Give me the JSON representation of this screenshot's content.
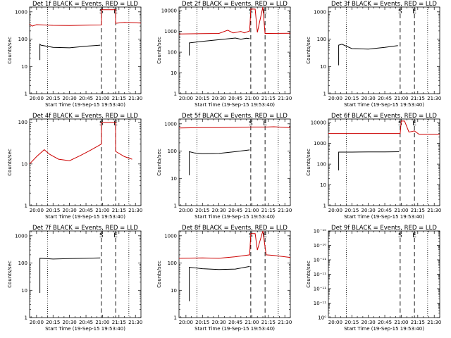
{
  "chart_data": [
    {
      "type": "line",
      "title": "Det 1f BLACK = Events, RED = LLD",
      "xlabel": "Start Time (19-Sep-15 19:53:40)",
      "ylabel": "Counts/sec",
      "x_unit": "time of day",
      "xticks": [
        "20:00",
        "20:15",
        "20:30",
        "20:45",
        "21:00",
        "21:15",
        "21:30"
      ],
      "xlim": [
        "19:53:40",
        "21:35"
      ],
      "yscale": "log",
      "yticks": [
        "1",
        "10",
        "100",
        "1000"
      ],
      "ylim": [
        1,
        1500
      ],
      "dotted_lines": [
        "20:10",
        "21:24"
      ],
      "dashed_lines": [
        {
          "time": "20:59",
          "label": "S"
        },
        {
          "time": "21:12",
          "label": "E"
        }
      ],
      "series": [
        {
          "color": "#cc0000",
          "points": [
            [
              "19:53:40",
              360
            ],
            [
              "19:56",
              300
            ],
            [
              "20:00",
              340
            ],
            [
              "20:15",
              320
            ],
            [
              "20:30",
              315
            ],
            [
              "20:45",
              325
            ],
            [
              "20:59",
              330
            ],
            [
              "20:59",
              1200
            ],
            [
              "21:12",
              1200
            ],
            [
              "21:12",
              380
            ],
            [
              "21:20",
              410
            ],
            [
              "21:35",
              390
            ]
          ]
        },
        {
          "color": "#000000",
          "points": [
            [
              "20:03",
              17
            ],
            [
              "20:03",
              65
            ],
            [
              "20:04",
              60
            ],
            [
              "20:15",
              50
            ],
            [
              "20:30",
              48
            ],
            [
              "20:45",
              55
            ],
            [
              "20:58",
              60
            ]
          ]
        }
      ]
    },
    {
      "type": "line",
      "title": "Det 2f BLACK = Events, RED = LLD",
      "xlabel": "Start Time (19-Sep-15 19:53:40)",
      "ylabel": "Counts/sec",
      "x_unit": "time of day",
      "xticks": [
        "20:00",
        "20:15",
        "20:30",
        "20:45",
        "21:00",
        "21:15",
        "21:30"
      ],
      "xlim": [
        "19:53:40",
        "21:35"
      ],
      "yscale": "log",
      "yticks": [
        "1",
        "10",
        "100",
        "1000",
        "10000"
      ],
      "ylim": [
        1,
        15000
      ],
      "dotted_lines": [
        "20:10",
        "21:24"
      ],
      "dashed_lines": [
        {
          "time": "20:59",
          "label": "S"
        },
        {
          "time": "21:12",
          "label": "E"
        }
      ],
      "series": [
        {
          "color": "#cc0000",
          "points": [
            [
              "19:53:40",
              750
            ],
            [
              "20:15",
              780
            ],
            [
              "20:30",
              800
            ],
            [
              "20:38",
              1150
            ],
            [
              "20:43",
              850
            ],
            [
              "20:50",
              1000
            ],
            [
              "20:53",
              850
            ],
            [
              "20:58",
              1050
            ],
            [
              "20:59",
              12000
            ],
            [
              "21:03",
              12000
            ],
            [
              "21:05",
              900
            ],
            [
              "21:10",
              20000
            ],
            [
              "21:12",
              800
            ],
            [
              "21:35",
              820
            ]
          ]
        },
        {
          "color": "#000000",
          "points": [
            [
              "20:03",
              70
            ],
            [
              "20:03",
              280
            ],
            [
              "20:15",
              330
            ],
            [
              "20:30",
              400
            ],
            [
              "20:45",
              480
            ],
            [
              "20:50",
              420
            ],
            [
              "20:55",
              470
            ],
            [
              "20:58",
              450
            ]
          ]
        }
      ]
    },
    {
      "type": "line",
      "title": "Det 3f BLACK = Events, RED = LLD",
      "xlabel": "Start Time (19-Sep-15 19:53:40)",
      "ylabel": "Counts/sec",
      "x_unit": "time of day",
      "xticks": [
        "20:00",
        "20:15",
        "20:30",
        "20:45",
        "21:00",
        "21:15",
        "21:30"
      ],
      "xlim": [
        "19:53:40",
        "21:35"
      ],
      "yscale": "log",
      "yticks": [
        "1",
        "10",
        "100",
        "1000"
      ],
      "ylim": [
        1,
        1500
      ],
      "dotted_lines": [
        "20:10",
        "21:24"
      ],
      "dashed_lines": [
        {
          "time": "20:59",
          "label": "S"
        },
        {
          "time": "21:12",
          "label": "E"
        }
      ],
      "series": [
        {
          "color": "#000000",
          "points": [
            [
              "20:03",
              11
            ],
            [
              "20:03",
              60
            ],
            [
              "20:06",
              65
            ],
            [
              "20:15",
              45
            ],
            [
              "20:30",
              43
            ],
            [
              "20:45",
              50
            ],
            [
              "20:57",
              58
            ]
          ]
        }
      ]
    },
    {
      "type": "line",
      "title": "Det 4f BLACK = Events, RED = LLD",
      "xlabel": "Start Time (19-Sep-15 19:53:40)",
      "ylabel": "Counts/sec",
      "x_unit": "time of day",
      "xticks": [
        "20:00",
        "20:15",
        "20:30",
        "20:45",
        "21:00",
        "21:15",
        "21:30"
      ],
      "xlim": [
        "19:53:40",
        "21:35"
      ],
      "yscale": "log",
      "yticks": [
        "1",
        "10",
        "100"
      ],
      "ylim": [
        1,
        120
      ],
      "dotted_lines": [
        "20:10",
        "21:24"
      ],
      "dashed_lines": [
        {
          "time": "20:59",
          "label": "S"
        },
        {
          "time": "21:12",
          "label": "E"
        }
      ],
      "series": [
        {
          "color": "#cc0000",
          "points": [
            [
              "19:53:40",
              10
            ],
            [
              "20:00",
              15
            ],
            [
              "20:07",
              22
            ],
            [
              "20:12",
              17
            ],
            [
              "20:20",
              13
            ],
            [
              "20:30",
              12
            ],
            [
              "20:40",
              16
            ],
            [
              "20:50",
              22
            ],
            [
              "20:59",
              30
            ],
            [
              "20:59",
              100
            ],
            [
              "21:12",
              100
            ],
            [
              "21:12",
              20
            ],
            [
              "21:20",
              15
            ],
            [
              "21:27",
              13
            ]
          ]
        }
      ]
    },
    {
      "type": "line",
      "title": "Det 5f BLACK = Events, RED = LLD",
      "xlabel": "Start Time (19-Sep-15 19:53:40)",
      "ylabel": "Counts/sec",
      "x_unit": "time of day",
      "xticks": [
        "20:00",
        "20:15",
        "20:30",
        "20:45",
        "21:00",
        "21:15",
        "21:30"
      ],
      "xlim": [
        "19:53:40",
        "21:35"
      ],
      "yscale": "log",
      "yticks": [
        "1",
        "10",
        "100",
        "1000"
      ],
      "ylim": [
        1,
        1500
      ],
      "dotted_lines": [
        "20:10",
        "21:24"
      ],
      "dashed_lines": [
        {
          "time": "20:59",
          "label": "S"
        },
        {
          "time": "21:12",
          "label": "E"
        }
      ],
      "series": [
        {
          "color": "#cc0000",
          "points": [
            [
              "19:53:40",
              700
            ],
            [
              "20:15",
              720
            ],
            [
              "20:30",
              720
            ],
            [
              "20:45",
              740
            ],
            [
              "20:59",
              760
            ],
            [
              "21:12",
              760
            ],
            [
              "21:20",
              780
            ],
            [
              "21:35",
              720
            ]
          ]
        },
        {
          "color": "#000000",
          "points": [
            [
              "20:03",
              13
            ],
            [
              "20:03",
              95
            ],
            [
              "20:08",
              85
            ],
            [
              "20:15",
              80
            ],
            [
              "20:30",
              82
            ],
            [
              "20:45",
              95
            ],
            [
              "20:58",
              110
            ]
          ]
        }
      ]
    },
    {
      "type": "line",
      "title": "Det 6f BLACK = Events, RED = LLD",
      "xlabel": "Start Time (19-Sep-15 19:53:40)",
      "ylabel": "Counts/sec",
      "x_unit": "time of day",
      "xticks": [
        "20:00",
        "20:15",
        "20:30",
        "20:45",
        "21:00",
        "21:15",
        "21:30"
      ],
      "xlim": [
        "19:53:40",
        "21:35"
      ],
      "yscale": "log",
      "yticks": [
        "1",
        "10",
        "100",
        "1000",
        "10000"
      ],
      "ylim": [
        1,
        15000
      ],
      "dotted_lines": [
        "20:10",
        "21:24"
      ],
      "dashed_lines": [
        {
          "time": "20:59",
          "label": "S"
        },
        {
          "time": "21:12",
          "label": "E"
        }
      ],
      "series": [
        {
          "color": "#cc0000",
          "points": [
            [
              "19:53:40",
              3000
            ],
            [
              "20:30",
              3000
            ],
            [
              "20:59",
              3000
            ],
            [
              "21:00",
              12000
            ],
            [
              "21:03",
              12000
            ],
            [
              "21:07",
              3500
            ],
            [
              "21:12",
              4000
            ],
            [
              "21:16",
              2800
            ],
            [
              "21:35",
              2800
            ]
          ]
        },
        {
          "color": "#000000",
          "points": [
            [
              "20:03",
              50
            ],
            [
              "20:03",
              380
            ],
            [
              "20:15",
              380
            ],
            [
              "20:30",
              385
            ],
            [
              "20:45",
              390
            ],
            [
              "20:58",
              395
            ]
          ]
        }
      ]
    },
    {
      "type": "line",
      "title": "Det 7f BLACK = Events, RED = LLD",
      "xlabel": "Start Time (19-Sep-15 19:53:40)",
      "ylabel": "Counts/sec",
      "x_unit": "time of day",
      "xticks": [
        "20:00",
        "20:15",
        "20:30",
        "20:45",
        "21:00",
        "21:15",
        "21:30"
      ],
      "xlim": [
        "19:53:40",
        "21:35"
      ],
      "yscale": "log",
      "yticks": [
        "1",
        "10",
        "100",
        "1000"
      ],
      "ylim": [
        1,
        1500
      ],
      "dotted_lines": [
        "20:10",
        "21:24"
      ],
      "dashed_lines": [
        {
          "time": "20:59",
          "label": "S"
        },
        {
          "time": "21:12",
          "label": "E"
        }
      ],
      "series": [
        {
          "color": "#000000",
          "points": [
            [
              "20:03",
              8
            ],
            [
              "20:03",
              150
            ],
            [
              "20:15",
              140
            ],
            [
              "20:30",
              145
            ],
            [
              "20:45",
              150
            ],
            [
              "20:58",
              155
            ]
          ]
        }
      ]
    },
    {
      "type": "line",
      "title": "Det 8f BLACK = Events, RED = LLD",
      "xlabel": "Start Time (19-Sep-15 19:53:40)",
      "ylabel": "Counts/sec",
      "x_unit": "time of day",
      "xticks": [
        "20:00",
        "20:15",
        "20:30",
        "20:45",
        "21:00",
        "21:15",
        "21:30"
      ],
      "xlim": [
        "19:53:40",
        "21:35"
      ],
      "yscale": "log",
      "yticks": [
        "1",
        "10",
        "100",
        "1000"
      ],
      "ylim": [
        1,
        1500
      ],
      "dotted_lines": [
        "20:10",
        "21:24"
      ],
      "dashed_lines": [
        {
          "time": "20:59",
          "label": "S"
        },
        {
          "time": "21:12",
          "label": "E"
        }
      ],
      "series": [
        {
          "color": "#cc0000",
          "points": [
            [
              "19:53:40",
              150
            ],
            [
              "20:15",
              155
            ],
            [
              "20:30",
              150
            ],
            [
              "20:45",
              170
            ],
            [
              "20:58",
              200
            ],
            [
              "20:59",
              1200
            ],
            [
              "21:03",
              1200
            ],
            [
              "21:05",
              300
            ],
            [
              "21:10",
              1500
            ],
            [
              "21:13",
              200
            ],
            [
              "21:20",
              190
            ],
            [
              "21:35",
              160
            ]
          ]
        },
        {
          "color": "#000000",
          "points": [
            [
              "20:03",
              4
            ],
            [
              "20:03",
              70
            ],
            [
              "20:15",
              62
            ],
            [
              "20:30",
              58
            ],
            [
              "20:45",
              60
            ],
            [
              "20:58",
              75
            ]
          ]
        }
      ]
    },
    {
      "type": "line",
      "title": "Det 9f BLACK = Events, RED = LLD",
      "xlabel": "Start Time (19-Sep-15 19:53:40)",
      "ylabel": "Counts/sec",
      "x_unit": "time of day",
      "xticks": [
        "20:00",
        "20:15",
        "20:30",
        "20:45",
        "21:00",
        "21:15",
        "21:30"
      ],
      "xlim": [
        "19:53:40",
        "21:35"
      ],
      "yscale": "log",
      "yticks": [
        "10⁰",
        "10⁻¹¹",
        "10⁻¹¹",
        "10⁻¹¹",
        "10⁻¹¹",
        "10⁻¹⁰",
        "10⁻¹⁰"
      ],
      "ylim": [
        1,
        1000000
      ],
      "dotted_lines": [
        "20:10",
        "21:24"
      ],
      "dashed_lines": [
        {
          "time": "20:59",
          "label": "S"
        },
        {
          "time": "21:12",
          "label": "E"
        }
      ],
      "series": []
    }
  ]
}
